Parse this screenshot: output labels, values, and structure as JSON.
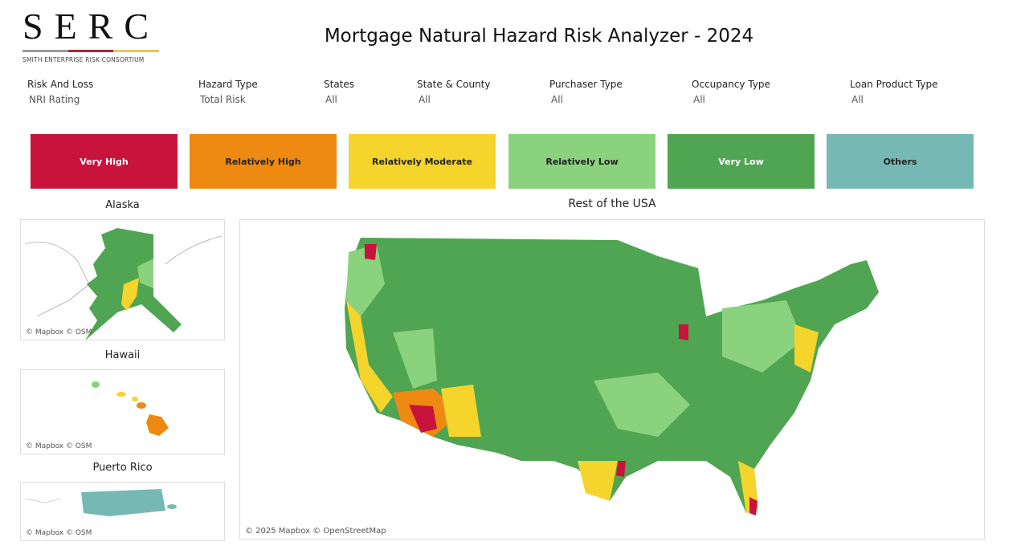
{
  "logo": {
    "letters": "SERC",
    "subtitle": "SMITH ENTERPRISE RISK CONSORTIUM"
  },
  "title": "Mortgage Natural Hazard Risk Analyzer - 2024",
  "filters": [
    {
      "label": "Risk And Loss",
      "value": "NRI Rating"
    },
    {
      "label": "Hazard Type",
      "value": "Total Risk"
    },
    {
      "label": "States",
      "value": "All"
    },
    {
      "label": "State & County",
      "value": "All"
    },
    {
      "label": "Purchaser Type",
      "value": "All"
    },
    {
      "label": "Occupancy Type",
      "value": "All"
    },
    {
      "label": "Loan Product Type",
      "value": "All"
    }
  ],
  "legend": [
    {
      "label": "Very High",
      "color": "#c8143c",
      "text": "#ffffff"
    },
    {
      "label": "Relatively High",
      "color": "#ee8a12",
      "text": "#222222"
    },
    {
      "label": "Relatively Moderate",
      "color": "#f5d42c",
      "text": "#222222"
    },
    {
      "label": "Relatively Low",
      "color": "#8ad27e",
      "text": "#222222"
    },
    {
      "label": "Very Low",
      "color": "#4fa552",
      "text": "#ffffff"
    },
    {
      "label": "Others",
      "color": "#76b8b4",
      "text": "#222222"
    }
  ],
  "maps": {
    "alaska": {
      "title": "Alaska",
      "credit": "© Mapbox © OSM"
    },
    "hawaii": {
      "title": "Hawaii",
      "credit": "© Mapbox © OSM"
    },
    "puerto_rico": {
      "title": "Puerto Rico",
      "credit": "© Mapbox © OSM"
    },
    "usa": {
      "title": "Rest of the USA",
      "credit": "© 2025 Mapbox © OpenStreetMap"
    }
  }
}
